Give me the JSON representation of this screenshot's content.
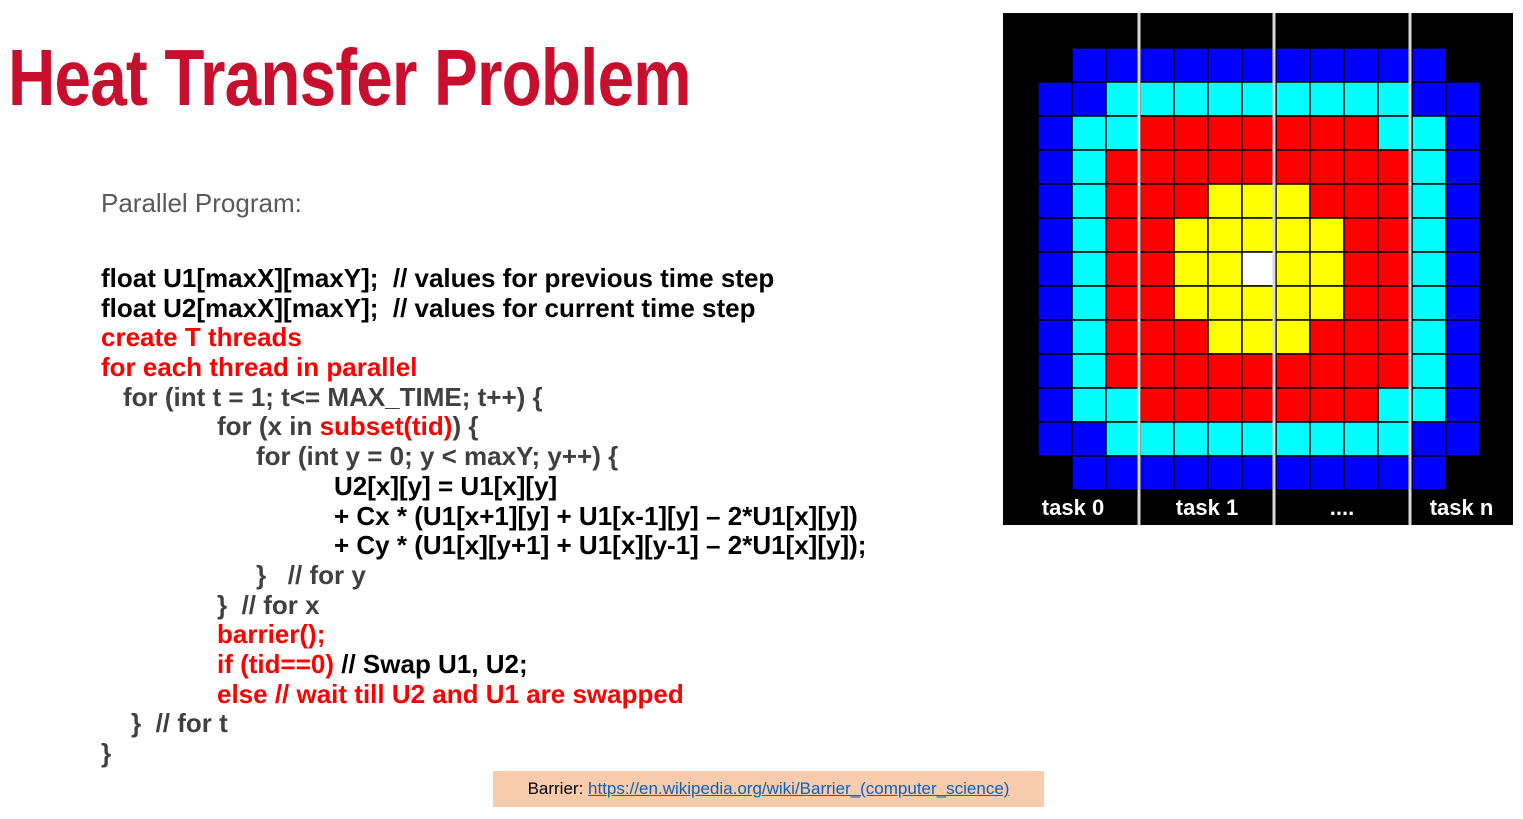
{
  "title": "Heat Transfer Problem",
  "subtitle": "Parallel Program:",
  "code_lines": [
    {
      "indent": 0,
      "segments": [
        {
          "text": "float U1[maxX][maxY];  // values for previous time step",
          "color": "black"
        }
      ]
    },
    {
      "indent": 0,
      "segments": [
        {
          "text": "float U2[maxX][maxY];  // values for current time step",
          "color": "black"
        }
      ]
    },
    {
      "indent": 0,
      "segments": [
        {
          "text": "create T threads",
          "color": "red"
        }
      ]
    },
    {
      "indent": 0,
      "segments": [
        {
          "text": "for each thread in parallel",
          "color": "red"
        }
      ]
    },
    {
      "indent": 1,
      "segments": [
        {
          "text": "for (int t = 1; t<= MAX_TIME; t++) {",
          "color": "gray"
        }
      ]
    },
    {
      "indent": 2,
      "segments": [
        {
          "text": "for (x in ",
          "color": "gray"
        },
        {
          "text": "subset(tid)",
          "color": "red"
        },
        {
          "text": ") {",
          "color": "gray"
        }
      ]
    },
    {
      "indent": 3,
      "segments": [
        {
          "text": "for (int y = 0; y < maxY; y++) {",
          "color": "gray"
        }
      ]
    },
    {
      "indent": 4,
      "segments": [
        {
          "text": "U2[x][y] = U1[x][y]",
          "color": "black"
        }
      ]
    },
    {
      "indent": 4,
      "segments": [
        {
          "text": "+ Cx * (U1[x+1][y] + U1[x-1][y] – 2*U1[x][y])",
          "color": "black"
        }
      ]
    },
    {
      "indent": 4,
      "segments": [
        {
          "text": "+ Cy * (U1[x][y+1] + U1[x][y-1] – 2*U1[x][y]);",
          "color": "black"
        }
      ]
    },
    {
      "indent": 5,
      "segments": [
        {
          "text": "}   // for y",
          "color": "gray"
        }
      ]
    },
    {
      "indent": 2,
      "segments": [
        {
          "text": "}  // for x",
          "color": "gray"
        }
      ]
    },
    {
      "indent": 2,
      "segments": [
        {
          "text": "barrier();",
          "color": "red"
        }
      ]
    },
    {
      "indent": 2,
      "segments": [
        {
          "text": "if (tid==0) ",
          "color": "red"
        },
        {
          "text": "// Swap U1, U2;",
          "color": "black"
        }
      ]
    },
    {
      "indent": 2,
      "segments": [
        {
          "text": "else // wait till U2 and U1 are swapped",
          "color": "red"
        }
      ]
    },
    {
      "indent": 6,
      "segments": [
        {
          "text": "}  // for t",
          "color": "gray"
        }
      ]
    },
    {
      "indent": 0,
      "segments": [
        {
          "text": "}",
          "color": "gray"
        }
      ]
    }
  ],
  "footer": {
    "label": "Barrier: ",
    "link_text": "https://en.wikipedia.org/wiki/Barrier_(computer_science)"
  },
  "heat_grid": {
    "colors": {
      "B": "#0000ff",
      "C": "#00ffff",
      "R": "#ff0000",
      "Y": "#ffff00",
      "W": "#ffffff",
      "K": "#000000"
    },
    "rows": [
      "KKBBBBBBBBBBBK",
      "KBBCCCCCCCCCBB",
      "KBCCRRRRRRRCCB",
      "KBCRRRRRRRRRCB",
      "KBCRRRYYYRRRCB",
      "KBCRRYYYYYRRCB",
      "KBCRRYYWYYRRCB",
      "KBCRRYYYYYRRCB",
      "KBCRRRYYYRRRCB",
      "KBCRRRRRRRRRCB",
      "KBCCRRRRRRRCCB",
      "KBBCCCCCCCCCBB",
      "KKBBBBBBBBBBBK"
    ]
  },
  "task_labels": [
    "task 0",
    "task 1",
    "....",
    "task n"
  ]
}
